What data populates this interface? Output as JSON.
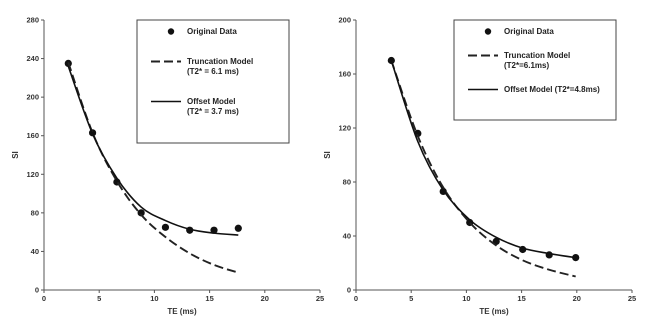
{
  "chart_data": [
    {
      "type": "scatter",
      "xlabel": "TE (ms)",
      "ylabel": "SI",
      "xlim": [
        0,
        25
      ],
      "ylim": [
        0,
        280
      ],
      "x_ticks": [
        "0",
        "5",
        "10",
        "15",
        "20",
        "25"
      ],
      "y_ticks": [
        "0",
        "40",
        "80",
        "120",
        "160",
        "200",
        "240",
        "280"
      ],
      "grid": false,
      "legend_position": "top-right",
      "series": [
        {
          "name": "Original Data",
          "style": "points",
          "color": "#111111",
          "points": [
            [
              2.2,
              235
            ],
            [
              4.4,
              163
            ],
            [
              6.6,
              112
            ],
            [
              8.8,
              80
            ],
            [
              11.0,
              65
            ],
            [
              13.2,
              62
            ],
            [
              15.4,
              62
            ],
            [
              17.6,
              64
            ]
          ]
        },
        {
          "name": "Truncation Model",
          "name_line2": "(T2* = 6.1 ms)",
          "style": "dashed",
          "color": "#222222",
          "points": [
            [
              2.2,
              236
            ],
            [
              4.4,
              163
            ],
            [
              6.6,
              113
            ],
            [
              8.8,
              78
            ],
            [
              11.0,
              55
            ],
            [
              13.2,
              38
            ],
            [
              15.4,
              26
            ],
            [
              17.6,
              18
            ]
          ]
        },
        {
          "name": "Offset Model",
          "name_line2": "(T2* = 3.7 ms)",
          "style": "solid",
          "color": "#111111",
          "points": [
            [
              2.2,
              232
            ],
            [
              4.4,
              162
            ],
            [
              6.6,
              116
            ],
            [
              8.8,
              86
            ],
            [
              11.0,
              72
            ],
            [
              13.2,
              63
            ],
            [
              15.4,
              59
            ],
            [
              17.6,
              57
            ]
          ]
        }
      ]
    },
    {
      "type": "scatter",
      "xlabel": "TE (ms)",
      "ylabel": "SI",
      "xlim": [
        0,
        25
      ],
      "ylim": [
        0,
        200
      ],
      "x_ticks": [
        "0",
        "5",
        "10",
        "15",
        "20",
        "25"
      ],
      "y_ticks": [
        "0",
        "40",
        "80",
        "120",
        "160",
        "200"
      ],
      "grid": false,
      "legend_position": "top-right",
      "series": [
        {
          "name": "Original Data",
          "style": "points",
          "color": "#111111",
          "points": [
            [
              3.2,
              170
            ],
            [
              5.6,
              116
            ],
            [
              7.9,
              73
            ],
            [
              10.3,
              50
            ],
            [
              12.7,
              36
            ],
            [
              15.1,
              30
            ],
            [
              17.5,
              26
            ],
            [
              19.9,
              24
            ]
          ]
        },
        {
          "name": "Truncation Model",
          "name_line2": "(T2*=6.1ms)",
          "style": "dashed",
          "color": "#222222",
          "points": [
            [
              3.2,
              170
            ],
            [
              5.6,
              114
            ],
            [
              7.9,
              76
            ],
            [
              10.3,
              50
            ],
            [
              12.7,
              33
            ],
            [
              15.1,
              22
            ],
            [
              17.5,
              15
            ],
            [
              19.9,
              10
            ]
          ]
        },
        {
          "name": "Offset Model (T2*=4.8ms)",
          "name_line2": "",
          "style": "solid",
          "color": "#111111",
          "points": [
            [
              3.2,
              170
            ],
            [
              5.6,
              110
            ],
            [
              7.9,
              74
            ],
            [
              10.3,
              52
            ],
            [
              12.7,
              39
            ],
            [
              15.1,
              31
            ],
            [
              17.5,
              27
            ],
            [
              19.9,
              24
            ]
          ]
        }
      ]
    }
  ]
}
